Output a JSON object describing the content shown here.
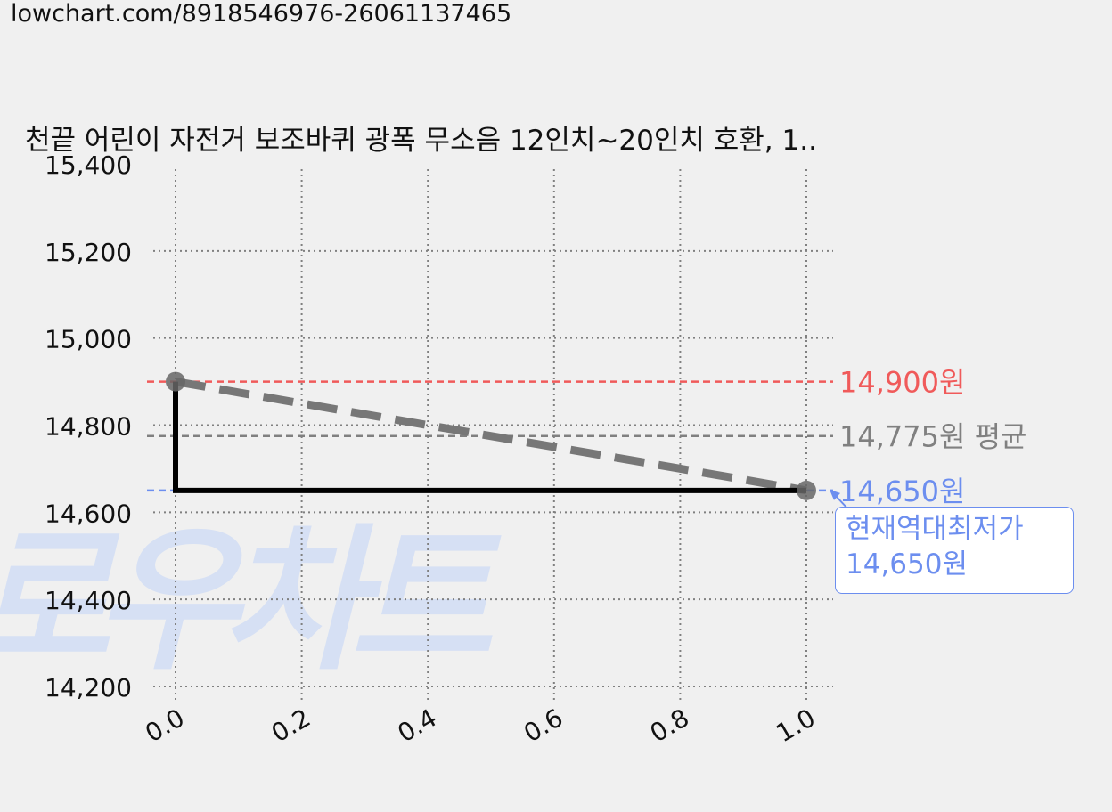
{
  "url": "lowchart.com/8918546976-26061137465",
  "watermark": "로우차트",
  "colors": {
    "max": "#f05a5a",
    "avg": "#808080",
    "min": "#6c8eef",
    "line": "#000000",
    "trend": "#777777",
    "grid": "#808080",
    "watermark": "#d6e0f4"
  },
  "chart_data": {
    "type": "line",
    "title": "천끝 어린이 자전거 보조바퀴 광폭 무소음 12인치~20인치 호환, 1..",
    "xlabel": "",
    "ylabel": "",
    "xlim": [
      0.0,
      1.0
    ],
    "ylim": [
      14200,
      15400
    ],
    "x_ticks": [
      "0.0",
      "0.2",
      "0.4",
      "0.6",
      "0.8",
      "1.0"
    ],
    "y_ticks": [
      "15,400",
      "15,200",
      "15,000",
      "14,800",
      "14,600",
      "14,400",
      "14,200"
    ],
    "grid": true,
    "series": [
      {
        "points": [
          [
            0.0,
            14900
          ],
          [
            0.0,
            14650
          ],
          [
            1.0,
            14650
          ]
        ],
        "style": "solid"
      }
    ],
    "trend": {
      "points": [
        [
          0.0,
          14900
        ],
        [
          1.0,
          14650
        ]
      ],
      "style": "dashed"
    },
    "markers": [
      [
        0.0,
        14900
      ],
      [
        1.0,
        14650
      ]
    ],
    "reference_lines": [
      {
        "value": 14900,
        "label": "14,900원",
        "color": "#f05a5a"
      },
      {
        "value": 14775,
        "label": "14,775원 평균",
        "color": "#808080"
      },
      {
        "value": 14650,
        "label": "14,650원",
        "color": "#6c8eef"
      }
    ],
    "annotation": {
      "line1": "현재역대최저가",
      "line2": "14,650원"
    }
  }
}
